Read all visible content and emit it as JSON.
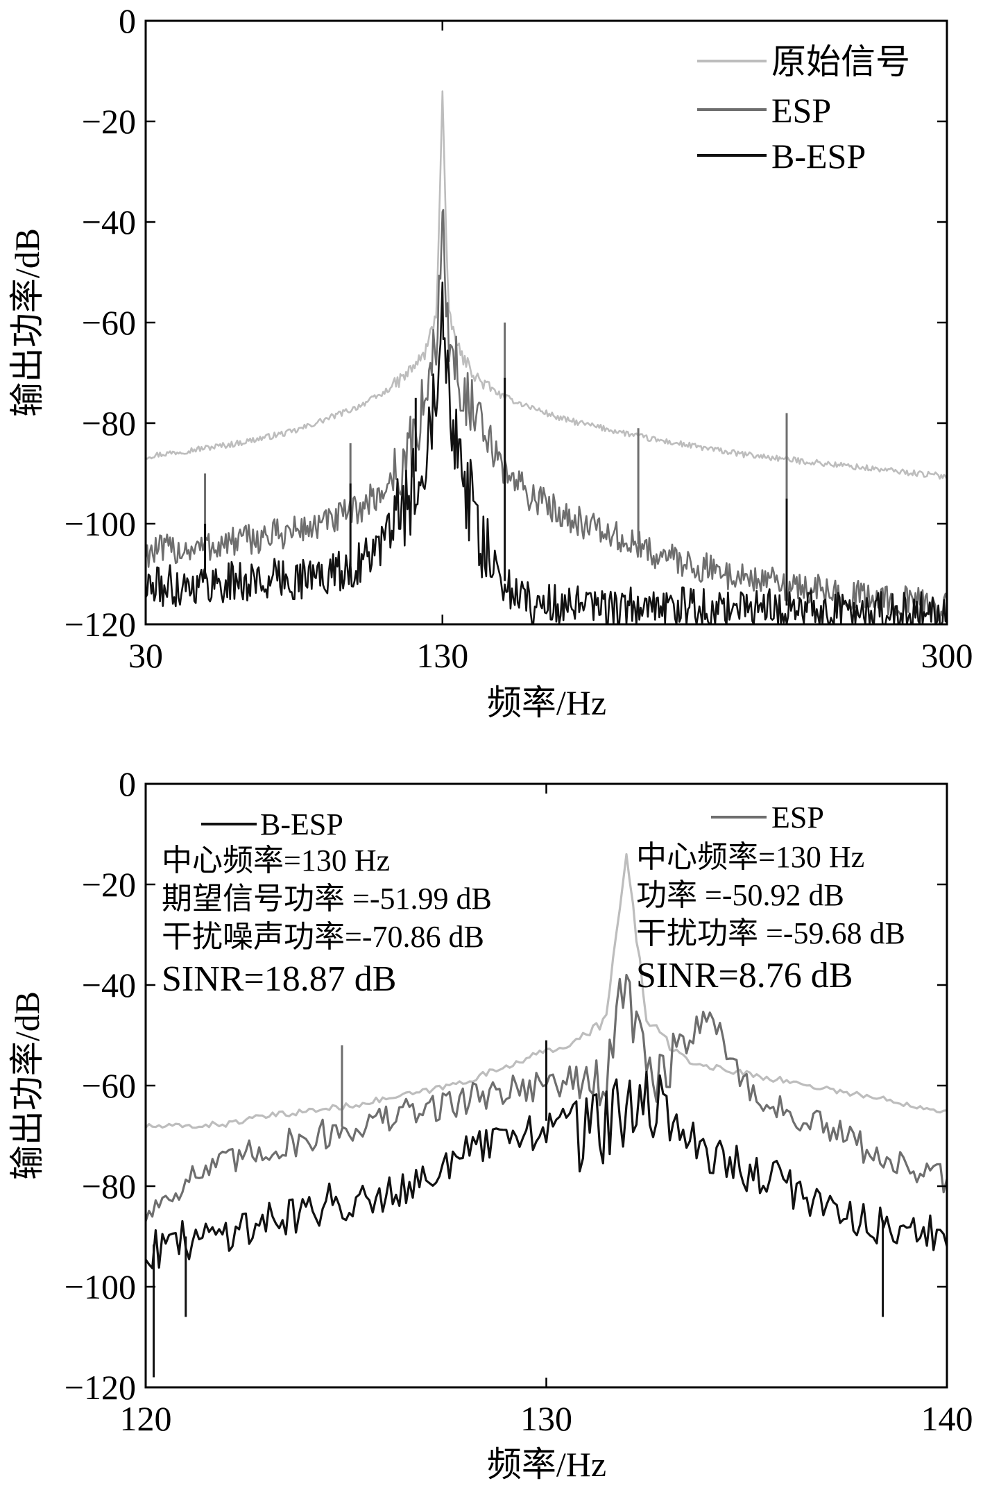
{
  "colors": {
    "original": "#bdbdbd",
    "esp": "#6e6e6e",
    "besp": "#111111"
  },
  "chart_data": [
    {
      "type": "line",
      "xlabel": "频率/Hz",
      "ylabel": "输出功率/dB",
      "xlim": [
        30,
        300
      ],
      "ylim": [
        -120,
        0
      ],
      "xticks": [
        "30",
        "130",
        "300"
      ],
      "yticks": [
        "0",
        "-20",
        "-40",
        "-60",
        "-80",
        "-100",
        "-120"
      ],
      "legend": {
        "position": "top-right",
        "entries": [
          "原始信号",
          "ESP",
          "B-ESP"
        ]
      },
      "series": [
        {
          "name": "原始信号",
          "color": "original",
          "x": [
            30,
            60,
            80,
            100,
            110,
            118,
            124,
            128,
            130,
            132,
            136,
            142,
            150,
            170,
            200,
            230,
            260,
            300
          ],
          "values": [
            -86.5,
            -84,
            -81.5,
            -77,
            -74,
            -70,
            -66,
            -58,
            -14,
            -58,
            -66,
            -71,
            -74.5,
            -79,
            -83,
            -86,
            -88,
            -90.5
          ]
        },
        {
          "name": "ESP",
          "color": "esp",
          "x": [
            30,
            50,
            70,
            90,
            100,
            110,
            118,
            124,
            128,
            130,
            132,
            136,
            142,
            150,
            160,
            180,
            200,
            220,
            240,
            260,
            280,
            300
          ],
          "values": [
            -105,
            -104,
            -102,
            -99.5,
            -97,
            -93,
            -86,
            -75,
            -62,
            -38,
            -63,
            -70,
            -80,
            -88,
            -94,
            -100,
            -105,
            -108.5,
            -111,
            -113,
            -114.5,
            -116
          ]
        },
        {
          "name": "B-ESP",
          "color": "besp",
          "x": [
            30,
            50,
            70,
            90,
            100,
            110,
            115,
            120,
            125,
            128,
            130,
            132,
            135,
            140,
            145,
            150,
            160,
            180,
            200,
            230,
            260,
            300
          ],
          "values": [
            -112,
            -111,
            -110.5,
            -109.5,
            -108,
            -103,
            -98,
            -92,
            -80,
            -68,
            -52,
            -70,
            -82,
            -96,
            -106,
            -111,
            -115,
            -116,
            -116,
            -116,
            -116.5,
            -117
          ]
        }
      ],
      "spikes": [
        {
          "series": "ESP",
          "x": 50,
          "value": -90
        },
        {
          "series": "ESP",
          "x": 99,
          "value": -84
        },
        {
          "series": "ESP",
          "x": 151,
          "value": -60
        },
        {
          "series": "ESP",
          "x": 196,
          "value": -81
        },
        {
          "series": "ESP",
          "x": 246,
          "value": -78
        },
        {
          "series": "B-ESP",
          "x": 50,
          "value": -100
        },
        {
          "series": "B-ESP",
          "x": 99,
          "value": -92
        },
        {
          "series": "B-ESP",
          "x": 121,
          "value": -75
        },
        {
          "series": "B-ESP",
          "x": 151,
          "value": -71
        },
        {
          "series": "B-ESP",
          "x": 246,
          "value": -95
        }
      ]
    },
    {
      "type": "line",
      "xlabel": "频率/Hz",
      "ylabel": "输出功率/dB",
      "xlim": [
        120,
        140
      ],
      "ylim": [
        -120,
        0
      ],
      "xticks": [
        "120",
        "130",
        "140"
      ],
      "yticks": [
        "0",
        "-20",
        "-40",
        "-60",
        "-80",
        "-100",
        "-120"
      ],
      "legend": {
        "entries": [
          "B-ESP",
          "ESP"
        ]
      },
      "annotations": {
        "left": [
          "中心频率=130 Hz",
          "期望信号功率 =-51.99 dB",
          "干扰噪声功率=-70.86 dB",
          "SINR=18.87 dB"
        ],
        "right": [
          "中心频率=130 Hz",
          "功率 =-50.92 dB",
          "干扰功率 =-59.68 dB",
          "SINR=8.76 dB"
        ]
      },
      "series": [
        {
          "name": "原始信号",
          "color": "original",
          "x": [
            120,
            121,
            122,
            123,
            124,
            125,
            126,
            127,
            128,
            129,
            130,
            130.5,
            131,
            131.5,
            132,
            132.5,
            133,
            133.5,
            134,
            135,
            136,
            137,
            138,
            139,
            140
          ],
          "values": [
            -68,
            -68,
            -67.5,
            -66,
            -65,
            -64,
            -62.5,
            -61,
            -59,
            -56,
            -53,
            -52,
            -50,
            -46,
            -14,
            -46,
            -51,
            -55,
            -56,
            -57.5,
            -59,
            -60.5,
            -62,
            -63.5,
            -65
          ]
        },
        {
          "name": "ESP",
          "color": "esp",
          "x": [
            120,
            121,
            122,
            123,
            124,
            125,
            126,
            127,
            128,
            129,
            130,
            131,
            131.5,
            132,
            132.5,
            133,
            133.5,
            134,
            135,
            136,
            137,
            138,
            139,
            140
          ],
          "values": [
            -85,
            -78,
            -75,
            -72,
            -70,
            -68,
            -66,
            -64,
            -62,
            -60,
            -59,
            -58,
            -57,
            -38,
            -57,
            -56,
            -50,
            -44,
            -60,
            -65,
            -68,
            -72,
            -76,
            -78
          ]
        },
        {
          "name": "B-ESP",
          "color": "besp",
          "x": [
            120,
            121,
            122,
            123,
            124,
            125,
            126,
            127,
            128,
            129,
            130,
            131,
            132,
            133,
            133.5,
            134,
            135,
            136,
            137,
            138,
            139,
            140
          ],
          "values": [
            -92,
            -90,
            -88,
            -86,
            -84,
            -82,
            -80,
            -77,
            -73,
            -70,
            -67,
            -66,
            -64,
            -65,
            -68,
            -72,
            -76,
            -79,
            -83,
            -86,
            -88,
            -90
          ]
        }
      ],
      "spikes": [
        {
          "series": "ESP",
          "x": 124.9,
          "value": -52
        },
        {
          "series": "B-ESP",
          "x": 120.2,
          "value": -118
        },
        {
          "series": "B-ESP",
          "x": 121,
          "value": -106
        },
        {
          "series": "B-ESP",
          "x": 130,
          "value": -51
        },
        {
          "series": "B-ESP",
          "x": 138.4,
          "value": -106
        }
      ]
    }
  ]
}
